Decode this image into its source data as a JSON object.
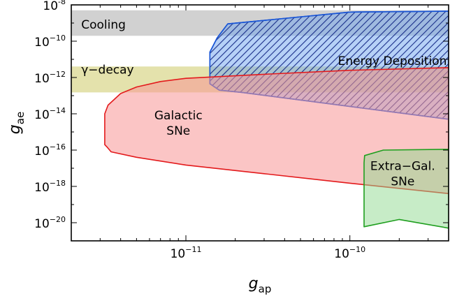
{
  "chart_data": {
    "type": "area",
    "title": "",
    "xlabel": {
      "symbol": "g",
      "subscript": "ap"
    },
    "ylabel": {
      "symbol": "g",
      "subscript": "ae"
    },
    "xscale": "log",
    "yscale": "log",
    "xlim": [
      2e-12,
      4e-10
    ],
    "ylim": [
      1e-21,
      1e-08
    ],
    "grid": false,
    "legend": "none",
    "x_ticks": [
      {
        "value": 1e-11,
        "base": "10",
        "exp": "−11"
      },
      {
        "value": 1e-10,
        "base": "10",
        "exp": "−10"
      }
    ],
    "y_ticks": [
      {
        "value": 1e-08,
        "base": "10",
        "exp": "-8"
      },
      {
        "value": 1e-10,
        "base": "10",
        "exp": "−10"
      },
      {
        "value": 1e-12,
        "base": "10",
        "exp": "−12"
      },
      {
        "value": 1e-14,
        "base": "10",
        "exp": "−14"
      },
      {
        "value": 1e-16,
        "base": "10",
        "exp": "−16"
      },
      {
        "value": 1e-18,
        "base": "10",
        "exp": "−18"
      },
      {
        "value": 1e-20,
        "base": "10",
        "exp": "−20"
      }
    ],
    "regions": [
      {
        "name": "Cooling",
        "kind": "band",
        "fill": "#b3b3b3",
        "fill_opacity": 0.6,
        "stroke": "none",
        "label_lines": [
          "Cooling"
        ],
        "label_pos": {
          "x": 2.3e-12,
          "y": 5e-10
        },
        "label_anchor": "start",
        "polygon": [
          [
            2e-12,
            5e-09
          ],
          [
            4e-10,
            5e-09
          ],
          [
            4e-10,
            2e-10
          ],
          [
            2e-12,
            2e-10
          ]
        ]
      },
      {
        "name": "γ-decay",
        "kind": "band",
        "fill": "#c9c55a",
        "fill_opacity": 0.5,
        "stroke": "none",
        "label_lines": [
          "γ−decay"
        ],
        "label_pos": {
          "x": 2.3e-12,
          "y": 1.6e-12
        },
        "label_anchor": "start",
        "polygon": [
          [
            2e-12,
            4e-12
          ],
          [
            4e-10,
            4e-12
          ],
          [
            4e-10,
            1.5e-13
          ],
          [
            2e-12,
            1.5e-13
          ]
        ]
      },
      {
        "name": "Energy Deposition",
        "kind": "region",
        "fill": "#6da3f0",
        "fill_opacity": 0.5,
        "stroke": "#1a56d6",
        "hatch": true,
        "label_lines": [
          "Energy Deposition"
        ],
        "label_pos": {
          "x": 3.9e-10,
          "y": 5e-12
        },
        "label_anchor": "end",
        "polygon": [
          [
            1.4e-11,
            4.5e-13
          ],
          [
            1.4e-11,
            2.5e-11
          ],
          [
            1.55e-11,
            1.5e-10
          ],
          [
            1.8e-11,
            9e-10
          ],
          [
            1e-10,
            4e-09
          ],
          [
            4e-10,
            4.5e-09
          ],
          [
            4e-10,
            5e-15
          ],
          [
            2.2e-11,
            1.5e-13
          ],
          [
            1.6e-11,
            2e-13
          ]
        ]
      },
      {
        "name": "Galactic SNe",
        "kind": "region",
        "fill": "#f89696",
        "fill_opacity": 0.55,
        "stroke": "#e31a1c",
        "label_lines": [
          "Galactic",
          "SNe"
        ],
        "label_pos": {
          "x": 9e-12,
          "y": 5e-15
        },
        "label_anchor": "middle",
        "polygon": [
          [
            3.3e-12,
            1.5e-16
          ],
          [
            3.2e-12,
            2e-16
          ],
          [
            3.2e-12,
            1e-14
          ],
          [
            3.35e-12,
            3e-14
          ],
          [
            4e-12,
            1.3e-13
          ],
          [
            5e-12,
            3e-13
          ],
          [
            7e-12,
            6e-13
          ],
          [
            1e-11,
            9e-13
          ],
          [
            3e-11,
            1.5e-12
          ],
          [
            1e-10,
            2.5e-12
          ],
          [
            4e-10,
            3.5e-12
          ],
          [
            4e-10,
            4e-19
          ],
          [
            1e-10,
            1.5e-18
          ],
          [
            3e-11,
            5e-18
          ],
          [
            1e-11,
            1.5e-17
          ],
          [
            5e-12,
            4e-17
          ],
          [
            3.5e-12,
            8e-17
          ]
        ]
      },
      {
        "name": "Extra-Gal. SNe",
        "kind": "region",
        "fill": "#8fd98f",
        "fill_opacity": 0.5,
        "stroke": "#1f9f1f",
        "label_lines": [
          "Extra−Gal.",
          "SNe"
        ],
        "label_pos": {
          "x": 2.1e-10,
          "y": 8e-18
        },
        "label_anchor": "middle",
        "polygon": [
          [
            1.22e-10,
            6e-21
          ],
          [
            1.22e-10,
            2e-17
          ],
          [
            1.23e-10,
            5e-17
          ],
          [
            1.6e-10,
            1e-16
          ],
          [
            4e-10,
            1.1e-16
          ],
          [
            4e-10,
            5e-21
          ],
          [
            2e-10,
            1.5e-20
          ]
        ]
      }
    ]
  }
}
